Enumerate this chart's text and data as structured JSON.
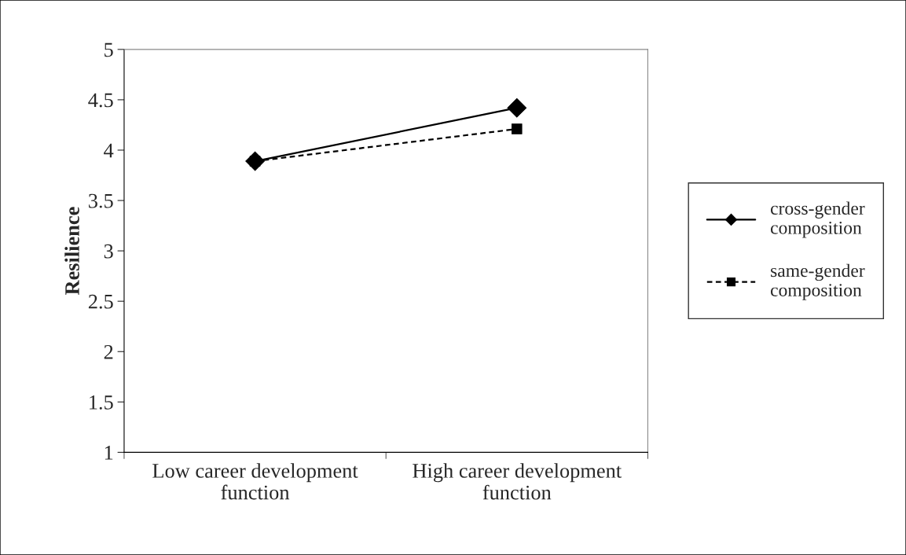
{
  "chart_data": {
    "type": "line",
    "ylabel": "Resilience",
    "categories": [
      "Low career development\nfunction",
      "High career development\nfunction"
    ],
    "series": [
      {
        "name": "cross-gender\ncomposition",
        "color": "#000000",
        "values": [
          3.89,
          4.42
        ],
        "marker": "diamond",
        "line_style": "solid"
      },
      {
        "name": "same-gender\ncomposition",
        "color": "#000000",
        "values": [
          3.89,
          4.21
        ],
        "marker": "square",
        "line_style": "dashed"
      }
    ],
    "ylim": [
      1,
      5
    ],
    "yticks": [
      1,
      1.5,
      2,
      2.5,
      3,
      3.5,
      4,
      4.5,
      5
    ],
    "grid": false,
    "legend": "right"
  }
}
